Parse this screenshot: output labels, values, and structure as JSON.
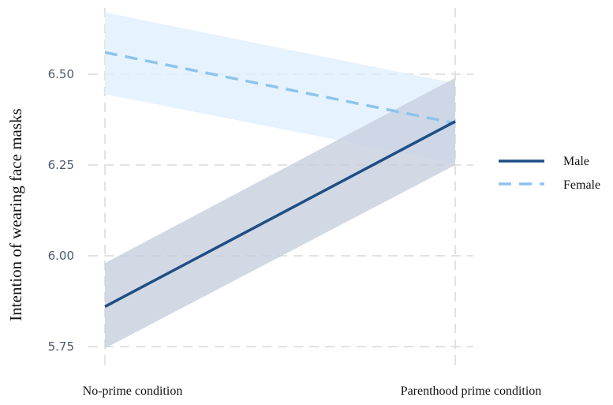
{
  "chart_data": {
    "type": "line",
    "title": "",
    "xlabel": "",
    "ylabel": "Intention of wearing face masks",
    "categories": [
      "No-prime condition",
      "Parenthood prime condition"
    ],
    "ylim": [
      5.73,
      6.69
    ],
    "yticks": [
      5.75,
      6.0,
      6.25,
      6.5
    ],
    "ytick_labels": [
      "5.75",
      "6.00",
      "6.25",
      "6.50"
    ],
    "grid": true,
    "legend_position": "right",
    "series": [
      {
        "name": "Male",
        "values": [
          5.86,
          6.37
        ],
        "ci_lower": [
          5.745,
          6.25
        ],
        "ci_upper": [
          5.98,
          6.49
        ],
        "line_style": "solid",
        "color": "#1f4e84",
        "band_color": "#c7cfdf"
      },
      {
        "name": "Female",
        "values": [
          6.56,
          6.365
        ],
        "ci_lower": [
          6.445,
          6.255
        ],
        "ci_upper": [
          6.67,
          6.475
        ],
        "line_style": "dashed",
        "color": "#8cc4ee",
        "band_color": "#ddeefc"
      }
    ]
  }
}
